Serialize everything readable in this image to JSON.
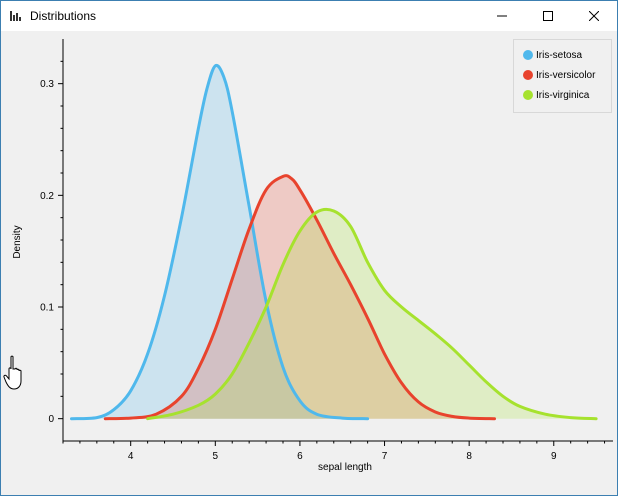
{
  "window": {
    "title": "Distributions"
  },
  "legend": {
    "items": [
      {
        "label": "Iris-setosa",
        "color": "#4fb8ec"
      },
      {
        "label": "Iris-versicolor",
        "color": "#e8432d"
      },
      {
        "label": "Iris-virginica",
        "color": "#a6e22e"
      }
    ]
  },
  "chart_data": {
    "type": "area",
    "xlabel": "sepal length",
    "ylabel": "Density",
    "xlim": [
      3.2,
      9.7
    ],
    "ylim": [
      -0.02,
      0.34
    ],
    "xticks": [
      4,
      5,
      6,
      7,
      8,
      9
    ],
    "yticks": [
      0,
      0.1,
      0.2,
      0.3
    ],
    "ytick_labels": [
      "0",
      "0.1",
      "0.2",
      "0.3"
    ],
    "grid": false,
    "legend_position": "top-right",
    "series": [
      {
        "name": "Iris-setosa",
        "color": "#4fb8ec",
        "x": [
          3.3,
          3.6,
          3.8,
          4.0,
          4.2,
          4.4,
          4.6,
          4.8,
          4.9,
          5.0,
          5.1,
          5.2,
          5.4,
          5.6,
          5.8,
          6.0,
          6.2,
          6.5,
          6.8
        ],
        "y": [
          0,
          0.001,
          0.008,
          0.025,
          0.058,
          0.11,
          0.18,
          0.26,
          0.295,
          0.316,
          0.306,
          0.275,
          0.19,
          0.105,
          0.046,
          0.016,
          0.004,
          0.0005,
          0
        ]
      },
      {
        "name": "Iris-versicolor",
        "color": "#e8432d",
        "x": [
          3.7,
          4.0,
          4.3,
          4.6,
          4.8,
          5.0,
          5.2,
          5.4,
          5.6,
          5.8,
          5.9,
          6.0,
          6.2,
          6.4,
          6.6,
          6.8,
          7.0,
          7.2,
          7.4,
          7.6,
          7.8,
          8.0,
          8.3
        ],
        "y": [
          0,
          0.0005,
          0.004,
          0.02,
          0.045,
          0.08,
          0.125,
          0.17,
          0.205,
          0.217,
          0.215,
          0.205,
          0.178,
          0.148,
          0.12,
          0.09,
          0.058,
          0.032,
          0.015,
          0.006,
          0.002,
          0.0005,
          0
        ]
      },
      {
        "name": "Iris-virginica",
        "color": "#a6e22e",
        "x": [
          4.2,
          4.5,
          4.8,
          5.0,
          5.2,
          5.4,
          5.6,
          5.8,
          6.0,
          6.2,
          6.4,
          6.6,
          6.8,
          7.0,
          7.2,
          7.4,
          7.6,
          7.8,
          8.0,
          8.2,
          8.4,
          8.6,
          8.9,
          9.2,
          9.5
        ],
        "y": [
          0,
          0.004,
          0.012,
          0.022,
          0.04,
          0.068,
          0.1,
          0.138,
          0.168,
          0.185,
          0.186,
          0.172,
          0.14,
          0.115,
          0.1,
          0.088,
          0.076,
          0.063,
          0.048,
          0.033,
          0.02,
          0.011,
          0.004,
          0.001,
          0
        ]
      }
    ]
  }
}
